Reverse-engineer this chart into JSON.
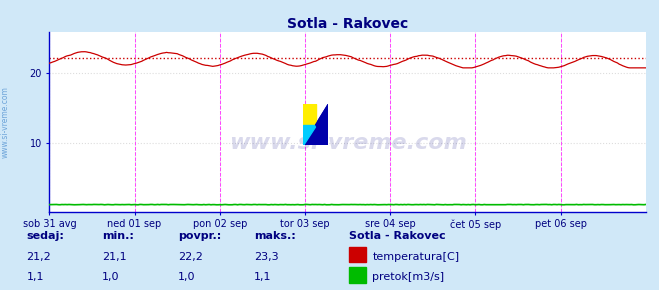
{
  "title": "Sotla - Rakovec",
  "title_color": "#000080",
  "bg_color": "#d0e8f8",
  "plot_bg_color": "#ffffff",
  "x_labels": [
    "sob 31 avg",
    "ned 01 sep",
    "pon 02 sep",
    "tor 03 sep",
    "sre 04 sep",
    "čet 05 sep",
    "pet 06 sep"
  ],
  "y_ticks": [
    10,
    20
  ],
  "y_lim": [
    0,
    26
  ],
  "x_lim": [
    0,
    336
  ],
  "temp_color": "#cc0000",
  "pretok_color": "#00bb00",
  "avg_line_color": "#cc0000",
  "avg_value": 22.2,
  "grid_color": "#dddddd",
  "vline_color": "#ff44ff",
  "text_color": "#000080",
  "watermark": "www.si-vreme.com",
  "watermark_color": "#000080",
  "watermark_alpha": 0.15,
  "sidebar_text": "www.si-vreme.com",
  "sidebar_color": "#4488cc",
  "n_points": 337,
  "day_ticks": [
    0,
    48,
    96,
    144,
    192,
    240,
    288,
    336
  ],
  "spine_color": "#0000cc",
  "temp_min": 21.1,
  "temp_max": 23.3,
  "temp_avg": 22.2,
  "pretok_sedaj": 1.1,
  "pretok_min": 1.0,
  "pretok_avg": 1.0,
  "pretok_max": 1.1
}
